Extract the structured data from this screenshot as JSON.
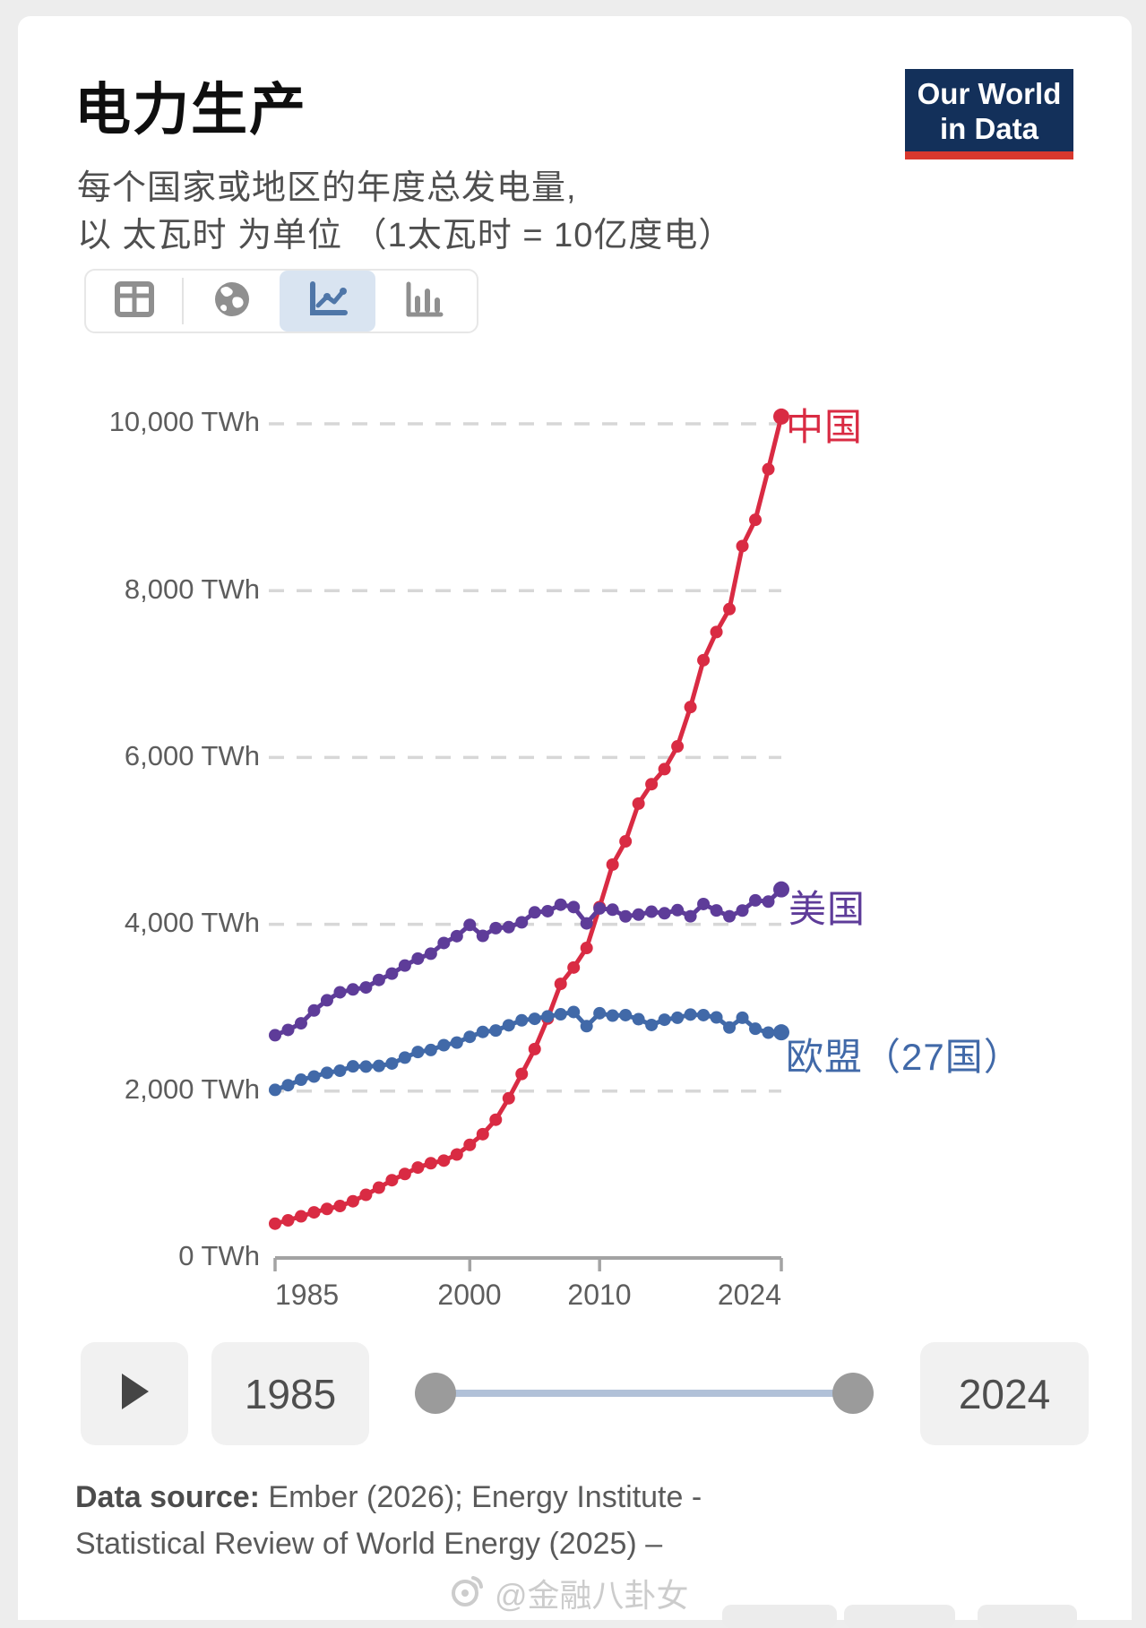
{
  "header": {
    "title": "电力生产",
    "subtitle_line1": "每个国家或地区的年度总发电量,",
    "subtitle_line2": "以 太瓦时 为单位 （1太瓦时 = 10亿度电）",
    "logo": {
      "line1": "Our World",
      "line2": "in Data",
      "bg_color": "#13305a",
      "accent_color": "#d8382e"
    }
  },
  "toolbar": {
    "items": [
      {
        "icon": "table-icon",
        "selected": false
      },
      {
        "icon": "globe-icon",
        "selected": false
      },
      {
        "icon": "line-chart-icon",
        "selected": true
      },
      {
        "icon": "bar-chart-icon",
        "selected": false
      }
    ],
    "selected_bg": "#d9e4f1"
  },
  "chart_data": {
    "type": "line",
    "title": "电力生产",
    "unit": "TWh",
    "ylim": [
      0,
      10000
    ],
    "grid": "dashed-horizontal",
    "legend_position": "line-end-labels",
    "y_tick_labels": [
      "10,000 TWh",
      "8,000 TWh",
      "6,000 TWh",
      "4,000 TWh",
      "2,000 TWh",
      "0 TWh"
    ],
    "y_tick_values": [
      10000,
      8000,
      6000,
      4000,
      2000,
      0
    ],
    "x_tick_labels": [
      "1985",
      "2000",
      "2010",
      "2024"
    ],
    "x": [
      1985,
      1986,
      1987,
      1988,
      1989,
      1990,
      1991,
      1992,
      1993,
      1994,
      1995,
      1996,
      1997,
      1998,
      1999,
      2000,
      2001,
      2002,
      2003,
      2004,
      2005,
      2006,
      2007,
      2008,
      2009,
      2010,
      2011,
      2012,
      2013,
      2014,
      2015,
      2016,
      2017,
      2018,
      2019,
      2020,
      2021,
      2022,
      2023,
      2024
    ],
    "series": [
      {
        "name": "中国",
        "color": "#d92b43",
        "values": [
          411,
          451,
          499,
          547,
          588,
          623,
          680,
          757,
          843,
          932,
          1007,
          1084,
          1136,
          1167,
          1240,
          1356,
          1484,
          1657,
          1914,
          2206,
          2504,
          2870,
          3286,
          3482,
          3716,
          4207,
          4716,
          4994,
          5447,
          5680,
          5860,
          6133,
          6604,
          7166,
          7504,
          7779,
          8534,
          8849,
          9456,
          10087
        ]
      },
      {
        "name": "美国",
        "color": "#5e3c99",
        "values": [
          2670,
          2734,
          2813,
          2967,
          3089,
          3185,
          3219,
          3243,
          3333,
          3409,
          3505,
          3589,
          3648,
          3776,
          3858,
          3993,
          3861,
          3954,
          3966,
          4024,
          4143,
          4157,
          4235,
          4207,
          4011,
          4190,
          4175,
          4095,
          4116,
          4151,
          4132,
          4170,
          4096,
          4243,
          4166,
          4096,
          4165,
          4287,
          4272,
          4418
        ]
      },
      {
        "name": "欧盟（27国）",
        "color": "#4169a8",
        "values": [
          2015,
          2071,
          2137,
          2175,
          2220,
          2245,
          2297,
          2294,
          2302,
          2331,
          2402,
          2469,
          2493,
          2551,
          2582,
          2651,
          2710,
          2727,
          2789,
          2849,
          2867,
          2896,
          2921,
          2949,
          2779,
          2934,
          2905,
          2911,
          2862,
          2793,
          2856,
          2880,
          2918,
          2911,
          2884,
          2763,
          2880,
          2748,
          2701,
          2705
        ]
      }
    ]
  },
  "timeline": {
    "start_year": "1985",
    "end_year": "2024"
  },
  "footer": {
    "source_label": "Data source:",
    "source_line1_rest": " Ember (2026); Energy Institute -",
    "source_line2": "Statistical Review of World Energy (2025) –",
    "watermark": "@金融八卦女"
  }
}
